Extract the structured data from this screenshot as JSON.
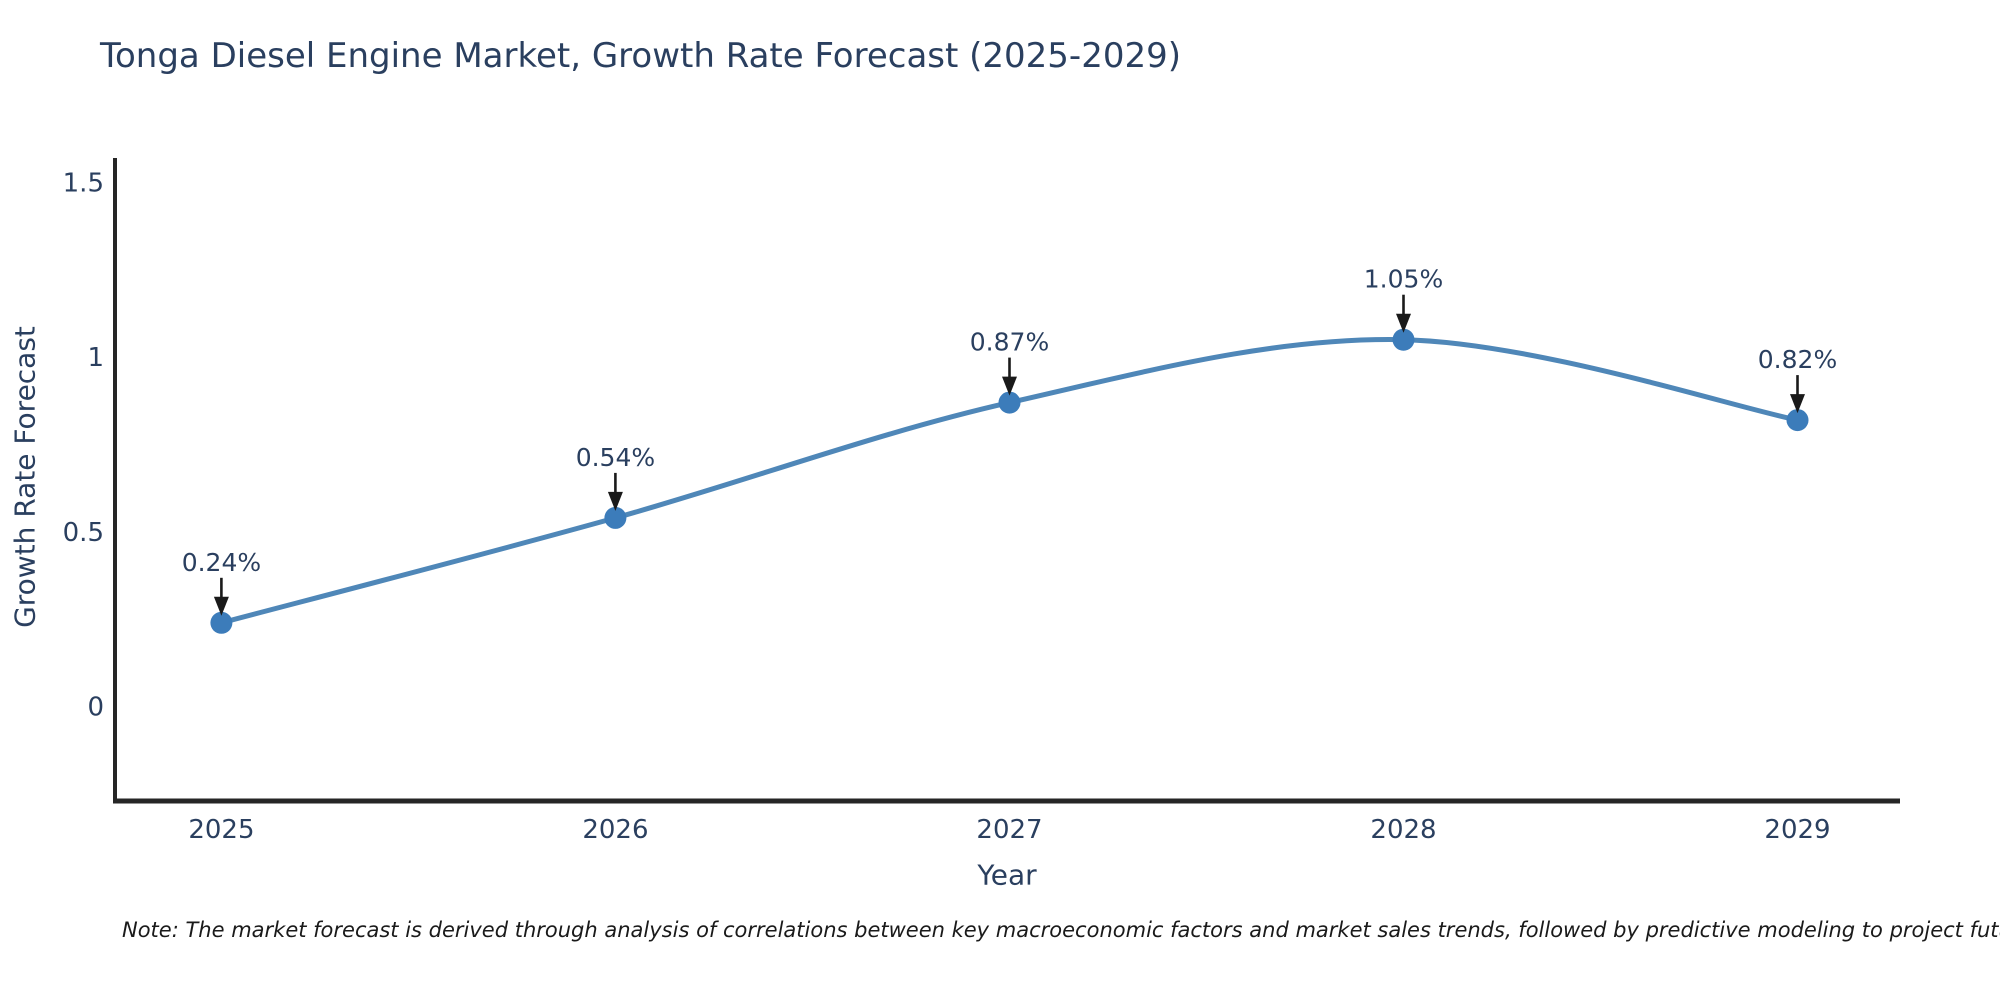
{
  "note": {
    "text": "Note: The market forecast is derived through analysis of correlations between key macroeconomic factors and market sales trends, followed by predictive modeling to project future sales"
  },
  "chart_data": {
    "type": "line",
    "title": "Tonga Diesel Engine Market, Growth Rate Forecast (2025-2029)",
    "xlabel": "Year",
    "ylabel": "Growth Rate Forecast",
    "x": [
      2025,
      2026,
      2027,
      2028,
      2029
    ],
    "x_tick_labels": [
      "2025",
      "2026",
      "2027",
      "2028",
      "2029"
    ],
    "values": [
      0.24,
      0.54,
      0.87,
      1.05,
      0.82
    ],
    "point_labels": [
      "0.24%",
      "0.54%",
      "0.87%",
      "1.05%",
      "0.82%"
    ],
    "y_ticks": {
      "values": [
        0,
        0.5,
        1,
        1.5
      ],
      "labels": [
        "0",
        "0.5",
        "1",
        "1.5"
      ]
    },
    "xlim": [
      2024.73,
      2029.26
    ],
    "ylim": [
      -0.27,
      1.57
    ],
    "grid": false,
    "legend": "none",
    "line_shape": "spline",
    "colors": {
      "line": "#4f87b8",
      "marker": "#3c7cba",
      "arrow": "#1a1a1a",
      "axis_line": "#262626",
      "text": "#2a3f5f"
    }
  }
}
